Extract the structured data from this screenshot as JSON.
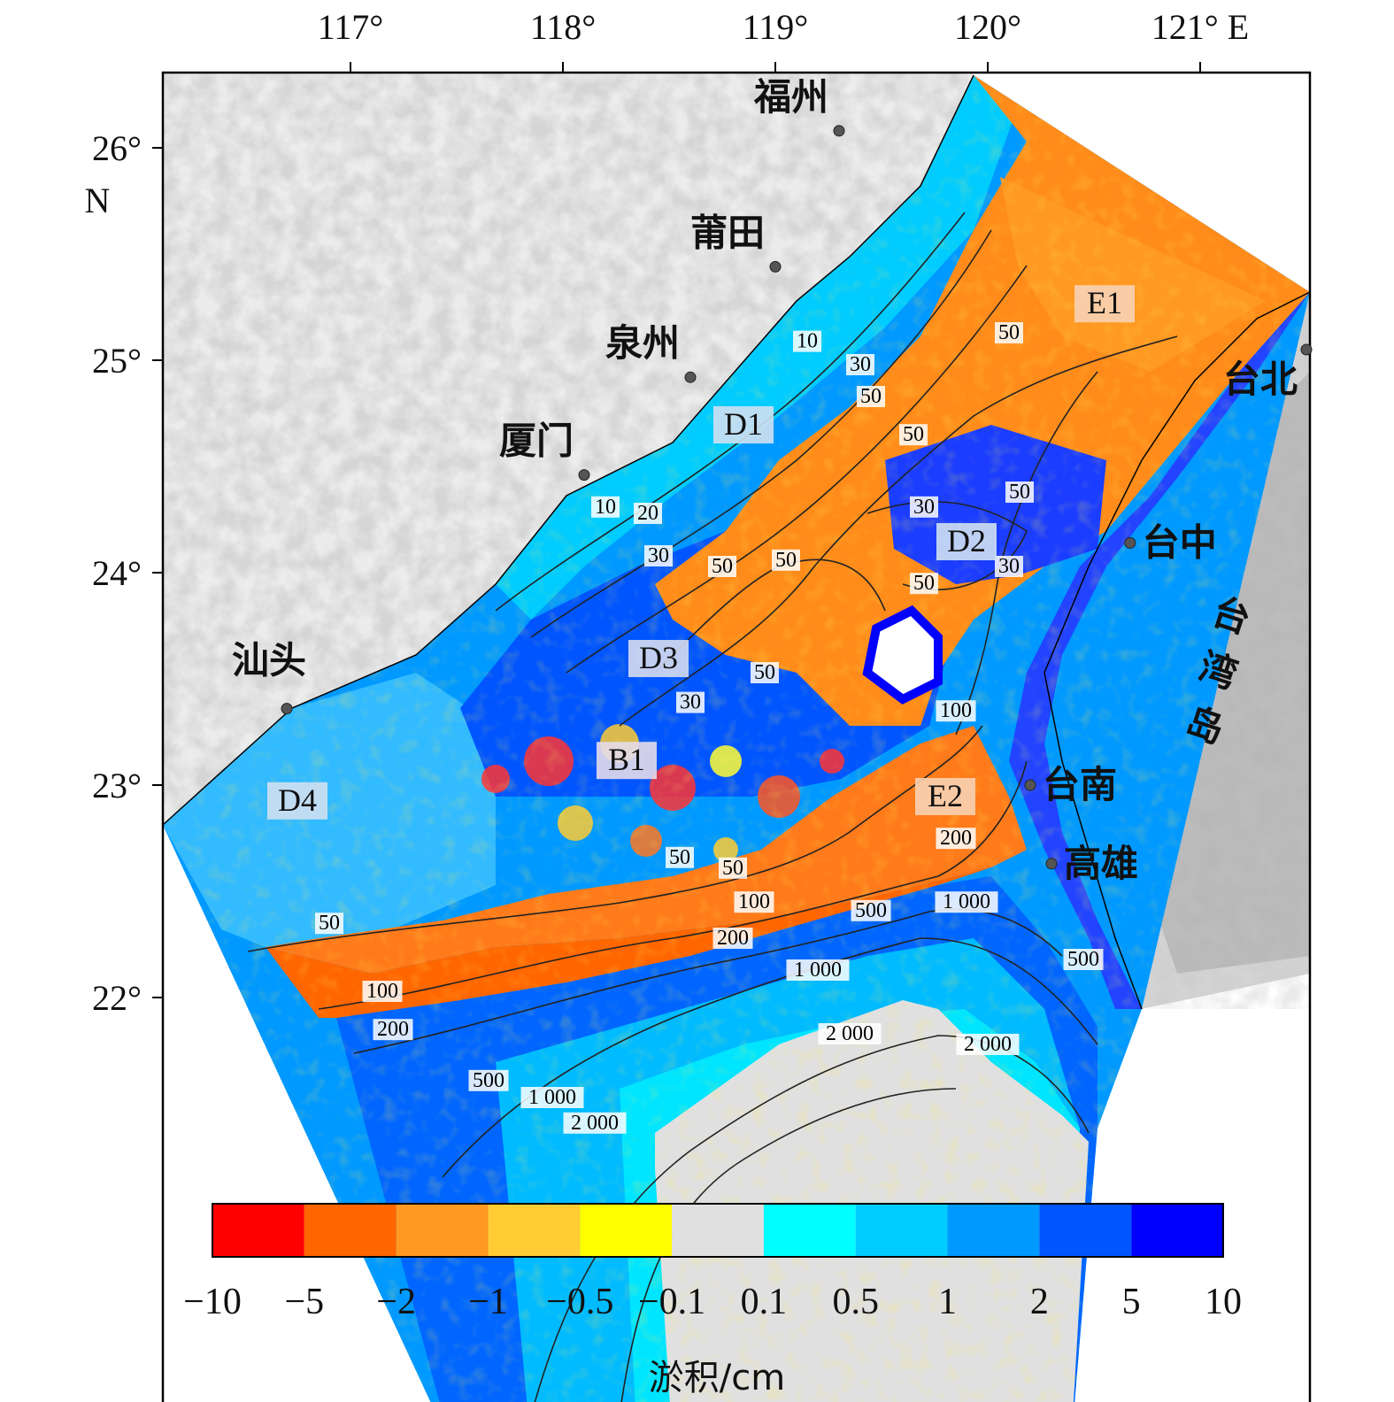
{
  "map": {
    "lon_ticks": [
      {
        "value": 117,
        "label": "117°"
      },
      {
        "value": 118,
        "label": "118°"
      },
      {
        "value": 119,
        "label": "119°"
      },
      {
        "value": 120,
        "label": "120°"
      },
      {
        "value": 121,
        "label": "121° E"
      }
    ],
    "lat_ticks": [
      {
        "value": 26,
        "label": "26°"
      },
      {
        "value": 25,
        "label": "25°"
      },
      {
        "value": 24,
        "label": "24°"
      },
      {
        "value": 23,
        "label": "23°"
      },
      {
        "value": 22,
        "label": "22°"
      }
    ],
    "lat_unit": "N",
    "cities": [
      {
        "name": "福州",
        "lon": 119.3,
        "lat": 26.08
      },
      {
        "name": "莆田",
        "lon": 119.0,
        "lat": 25.44
      },
      {
        "name": "泉州",
        "lon": 118.6,
        "lat": 24.92
      },
      {
        "name": "厦门",
        "lon": 118.1,
        "lat": 24.46
      },
      {
        "name": "汕头",
        "lon": 116.7,
        "lat": 23.36
      },
      {
        "name": "台北",
        "lon": 121.5,
        "lat": 25.05
      },
      {
        "name": "台中",
        "lon": 120.67,
        "lat": 24.14
      },
      {
        "name": "台南",
        "lon": 120.2,
        "lat": 23.0
      },
      {
        "name": "高雄",
        "lon": 120.3,
        "lat": 22.63
      }
    ],
    "island_label": [
      "台",
      "湾",
      "岛"
    ],
    "regions": [
      {
        "name": "E1",
        "lon": 120.55,
        "lat": 25.22,
        "bg": "#f8d2b4"
      },
      {
        "name": "D1",
        "lon": 118.85,
        "lat": 24.65,
        "bg": "#cfe0f2"
      },
      {
        "name": "D2",
        "lon": 119.9,
        "lat": 24.1,
        "bg": "#cfe0f2"
      },
      {
        "name": "D3",
        "lon": 118.45,
        "lat": 23.55,
        "bg": "#d6dcef"
      },
      {
        "name": "B1",
        "lon": 118.3,
        "lat": 23.07,
        "bg": "#e4dcea"
      },
      {
        "name": "D4",
        "lon": 116.75,
        "lat": 22.88,
        "bg": "#cfe0f2"
      },
      {
        "name": "E2",
        "lon": 119.8,
        "lat": 22.9,
        "bg": "#f8d2b4"
      }
    ],
    "contour_labels": [
      {
        "text": "10",
        "lon": 119.15,
        "lat": 25.06
      },
      {
        "text": "30",
        "lon": 119.4,
        "lat": 24.95
      },
      {
        "text": "50",
        "lon": 119.45,
        "lat": 24.8
      },
      {
        "text": "10",
        "lon": 118.2,
        "lat": 24.28
      },
      {
        "text": "20",
        "lon": 118.4,
        "lat": 24.25
      },
      {
        "text": "30",
        "lon": 118.45,
        "lat": 24.05
      },
      {
        "text": "50",
        "lon": 118.75,
        "lat": 24.0
      },
      {
        "text": "50",
        "lon": 119.05,
        "lat": 24.03
      },
      {
        "text": "50",
        "lon": 120.1,
        "lat": 25.1
      },
      {
        "text": "50",
        "lon": 119.65,
        "lat": 24.62
      },
      {
        "text": "50",
        "lon": 120.15,
        "lat": 24.35
      },
      {
        "text": "30",
        "lon": 119.7,
        "lat": 24.28
      },
      {
        "text": "30",
        "lon": 120.1,
        "lat": 24.0
      },
      {
        "text": "50",
        "lon": 119.7,
        "lat": 23.92
      },
      {
        "text": "50",
        "lon": 118.95,
        "lat": 23.5
      },
      {
        "text": "30",
        "lon": 118.6,
        "lat": 23.36
      },
      {
        "text": "100",
        "lon": 119.85,
        "lat": 23.32
      },
      {
        "text": "200",
        "lon": 119.85,
        "lat": 22.72
      },
      {
        "text": "50",
        "lon": 118.55,
        "lat": 22.63
      },
      {
        "text": "50",
        "lon": 118.8,
        "lat": 22.58
      },
      {
        "text": "100",
        "lon": 118.9,
        "lat": 22.42
      },
      {
        "text": "200",
        "lon": 118.8,
        "lat": 22.25
      },
      {
        "text": "500",
        "lon": 119.45,
        "lat": 22.38
      },
      {
        "text": "1 000",
        "lon": 119.9,
        "lat": 22.42
      },
      {
        "text": "1 000",
        "lon": 119.2,
        "lat": 22.1
      },
      {
        "text": "500",
        "lon": 120.45,
        "lat": 22.15
      },
      {
        "text": "2 000",
        "lon": 119.35,
        "lat": 21.8
      },
      {
        "text": "2 000",
        "lon": 120.0,
        "lat": 21.75
      },
      {
        "text": "50",
        "lon": 116.9,
        "lat": 22.32
      },
      {
        "text": "100",
        "lon": 117.15,
        "lat": 22.0
      },
      {
        "text": "200",
        "lon": 117.2,
        "lat": 21.82
      },
      {
        "text": "500",
        "lon": 117.65,
        "lat": 21.58
      },
      {
        "text": "1 000",
        "lon": 117.95,
        "lat": 21.5
      },
      {
        "text": "2 000",
        "lon": 118.15,
        "lat": 21.38
      }
    ]
  },
  "colorbar": {
    "colors": [
      "#ff0000",
      "#ff6600",
      "#ff9922",
      "#ffcc33",
      "#ffff00",
      "#e0e0e0",
      "#00ffff",
      "#00ccff",
      "#0099ff",
      "#0055ff",
      "#0000ff"
    ],
    "labels": [
      "−10",
      "−5",
      "−2",
      "−1",
      "−0.5",
      "−0.1",
      "0.1",
      "0.5",
      "1",
      "2",
      "5",
      "10"
    ],
    "title": "淤积/cm"
  }
}
